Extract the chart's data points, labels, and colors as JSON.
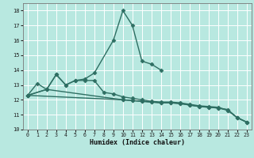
{
  "xlabel": "Humidex (Indice chaleur)",
  "bg_color": "#b8e8e0",
  "grid_color": "#ffffff",
  "line_color": "#2e6e62",
  "xlim": [
    -0.5,
    23.5
  ],
  "ylim": [
    10,
    18.5
  ],
  "yticks": [
    10,
    11,
    12,
    13,
    14,
    15,
    16,
    17,
    18
  ],
  "xticks": [
    0,
    1,
    2,
    3,
    4,
    5,
    6,
    7,
    8,
    9,
    10,
    11,
    12,
    13,
    14,
    15,
    16,
    17,
    18,
    19,
    20,
    21,
    22,
    23
  ],
  "series": [
    {
      "x": [
        0,
        1,
        2,
        3,
        4,
        5,
        6,
        7,
        9,
        10,
        11,
        12,
        13,
        14
      ],
      "y": [
        12.3,
        13.1,
        12.7,
        13.7,
        13.0,
        13.3,
        13.4,
        13.8,
        16.0,
        18.0,
        17.0,
        14.6,
        14.4,
        14.0
      ],
      "marker": "D",
      "markersize": 2.5,
      "linewidth": 1.0
    },
    {
      "x": [
        0,
        2,
        3,
        4,
        5,
        6,
        7,
        8,
        9,
        10,
        11,
        12,
        13,
        14,
        15,
        16,
        17,
        18,
        19,
        20,
        21,
        22,
        23
      ],
      "y": [
        12.3,
        12.7,
        13.7,
        13.0,
        13.3,
        13.3,
        13.3,
        12.5,
        12.4,
        12.2,
        12.1,
        12.0,
        11.9,
        11.85,
        11.85,
        11.8,
        11.7,
        11.6,
        11.55,
        11.5,
        11.3,
        10.8,
        10.5
      ],
      "marker": "D",
      "markersize": 2.5,
      "linewidth": 1.0
    },
    {
      "x": [
        0,
        2,
        10,
        11,
        12,
        13,
        14,
        15,
        16,
        17,
        18,
        19,
        20,
        21,
        22,
        23
      ],
      "y": [
        12.3,
        12.7,
        12.0,
        11.95,
        11.9,
        11.85,
        11.8,
        11.8,
        11.75,
        11.65,
        11.55,
        11.5,
        11.45,
        11.35,
        10.8,
        10.5
      ],
      "marker": "D",
      "markersize": 2.5,
      "linewidth": 1.0
    },
    {
      "x": [
        0,
        10,
        11,
        12,
        13,
        14,
        15,
        16,
        17,
        18,
        19,
        20,
        21,
        22,
        23
      ],
      "y": [
        12.3,
        12.0,
        11.95,
        11.9,
        11.85,
        11.8,
        11.8,
        11.75,
        11.65,
        11.55,
        11.5,
        11.45,
        11.3,
        10.8,
        10.5
      ],
      "marker": "D",
      "markersize": 2.5,
      "linewidth": 1.0
    }
  ]
}
